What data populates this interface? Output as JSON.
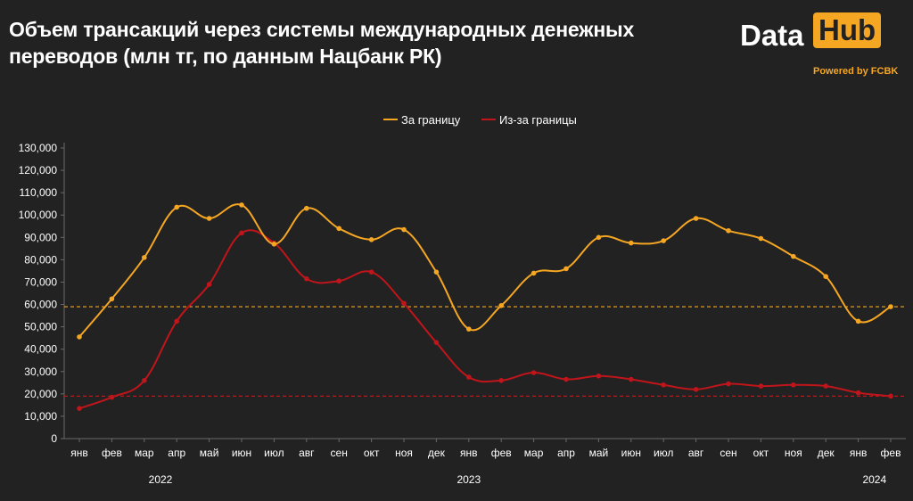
{
  "title": "Объем трансакций через системы международных денежных переводов (млн тг, по данным Нацбанк РК)",
  "logo": {
    "part1": "Data",
    "part2": "Hub",
    "tagline": "Powered by FCBK"
  },
  "colors": {
    "background": "#222222",
    "series1": "#f5a623",
    "series2": "#c0151b",
    "brand": "#f5a623"
  },
  "chart_data": {
    "type": "line",
    "title": "Объем трансакций через системы международных денежных переводов (млн тг, по данным Нацбанк РК)",
    "categories": [
      "янв",
      "фев",
      "мар",
      "апр",
      "май",
      "июн",
      "июл",
      "авг",
      "сен",
      "окт",
      "ноя",
      "дек",
      "янв",
      "фев",
      "мар",
      "апр",
      "май",
      "июн",
      "июл",
      "авг",
      "сен",
      "окт",
      "ноя",
      "дек",
      "янв",
      "фев"
    ],
    "year_labels": [
      {
        "label": "2022",
        "category_index": 2.5
      },
      {
        "label": "2023",
        "category_index": 12
      },
      {
        "label": "2024",
        "category_index": 24.5
      }
    ],
    "series": [
      {
        "name": "За границу",
        "color": "#f5a623",
        "values": [
          45500,
          62500,
          81000,
          103500,
          98500,
          104500,
          87000,
          103000,
          94000,
          89000,
          93500,
          74500,
          49000,
          59500,
          74000,
          76000,
          90000,
          87500,
          88500,
          98500,
          93000,
          89500,
          81500,
          72500,
          52500,
          59000
        ],
        "reference_line": 59000
      },
      {
        "name": "Из-за границы",
        "color": "#c0151b",
        "values": [
          13500,
          18500,
          26000,
          52500,
          69000,
          92000,
          87500,
          71500,
          70500,
          74500,
          60500,
          43000,
          27500,
          26000,
          29500,
          26500,
          28000,
          26500,
          24000,
          22000,
          24500,
          23500,
          24000,
          23500,
          20500,
          19000
        ],
        "reference_line": 19000
      }
    ],
    "ylim": [
      0,
      130000
    ],
    "yticks": [
      "0",
      "10,000",
      "20,000",
      "30,000",
      "40,000",
      "50,000",
      "60,000",
      "70,000",
      "80,000",
      "90,000",
      "100,000",
      "110,000",
      "120,000",
      "130,000"
    ],
    "ytick_step": 10000,
    "xlabel": "",
    "ylabel": "",
    "grid": false,
    "legend": "top-center"
  }
}
